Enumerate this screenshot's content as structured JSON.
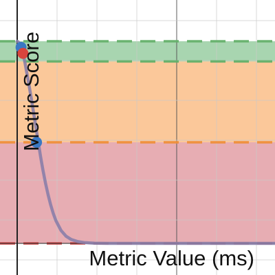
{
  "chart_data": {
    "type": "line",
    "xlabel": "Metric Value (ms)",
    "ylabel": "Metric Score",
    "xlim": [
      0,
      2000
    ],
    "ylim": [
      -0.05,
      1.1
    ],
    "grid": true,
    "bands": [
      {
        "from": 0.9,
        "to": 1.0,
        "color": "#a8d5b0",
        "line_color": "#64b06a"
      },
      {
        "from": 0.5,
        "to": 0.9,
        "color": "#fbc89a",
        "line_color": "#ef8f3a"
      },
      {
        "from": 0.0,
        "to": 0.5,
        "color": "#e7adb3",
        "line_color": "#d45a5a"
      }
    ],
    "series": [
      {
        "values_x": [
          0,
          10,
          20,
          30,
          40,
          50,
          60,
          70,
          80,
          90,
          100,
          110,
          120,
          130,
          140,
          150,
          160,
          170,
          180,
          190,
          200,
          220,
          240,
          260,
          280,
          300,
          340,
          380,
          420,
          470,
          520,
          600,
          700,
          800,
          900,
          1000,
          1200,
          1400,
          1600,
          1800,
          2000
        ],
        "values_y": [
          1.0,
          0.996,
          0.985,
          0.97,
          0.948,
          0.925,
          0.895,
          0.86,
          0.825,
          0.79,
          0.752,
          0.715,
          0.675,
          0.635,
          0.595,
          0.555,
          0.515,
          0.475,
          0.435,
          0.398,
          0.362,
          0.297,
          0.24,
          0.19,
          0.148,
          0.113,
          0.064,
          0.035,
          0.019,
          0.009,
          0.004,
          0.001,
          0.0,
          0.0,
          0.0,
          0.0,
          0.0,
          0.0,
          0.0,
          0.0,
          0.0
        ],
        "color": "#8a7ea8"
      }
    ],
    "points": [
      {
        "x": 30,
        "y": 0.97,
        "color": "#3a78c3"
      },
      {
        "x": 45,
        "y": 0.94,
        "color": "#d8453d"
      },
      {
        "x": 150,
        "y": 0.5,
        "color": "#3a78c3"
      }
    ]
  }
}
